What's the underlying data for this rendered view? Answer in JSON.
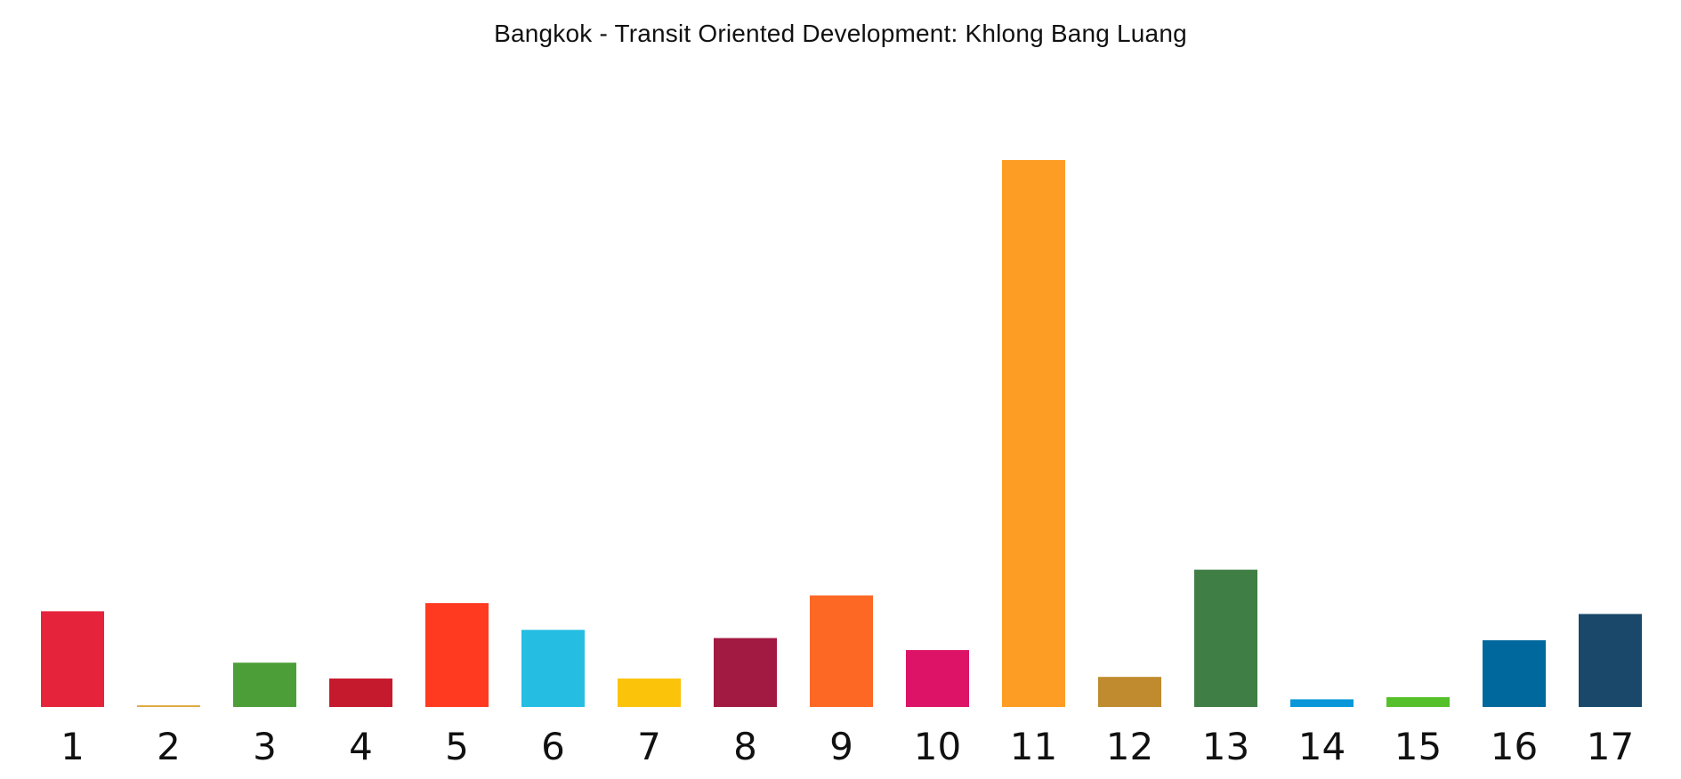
{
  "chart_data": {
    "type": "bar",
    "title": "Bangkok - Transit Oriented Development: Khlong Bang Luang",
    "xlabel": "",
    "ylabel": "",
    "categories": [
      "1",
      "2",
      "3",
      "4",
      "5",
      "6",
      "7",
      "8",
      "9",
      "10",
      "11",
      "12",
      "13",
      "14",
      "15",
      "16",
      "17"
    ],
    "values": [
      17.5,
      0.3,
      8.1,
      5.2,
      19.0,
      14.1,
      5.2,
      12.6,
      20.4,
      10.4,
      100,
      5.5,
      25.1,
      1.4,
      1.8,
      12.2,
      17.0
    ],
    "ylim": [
      0,
      100
    ],
    "grid": false,
    "legend": "none",
    "colors": [
      "#E5243B",
      "#DDA63A",
      "#4C9F38",
      "#C5192D",
      "#FF3A21",
      "#26BDE2",
      "#FCC30B",
      "#A21942",
      "#FD6925",
      "#DD1367",
      "#FD9D24",
      "#BF8B2E",
      "#3F7E44",
      "#0A97D9",
      "#56C02B",
      "#00689D",
      "#19486A"
    ]
  }
}
